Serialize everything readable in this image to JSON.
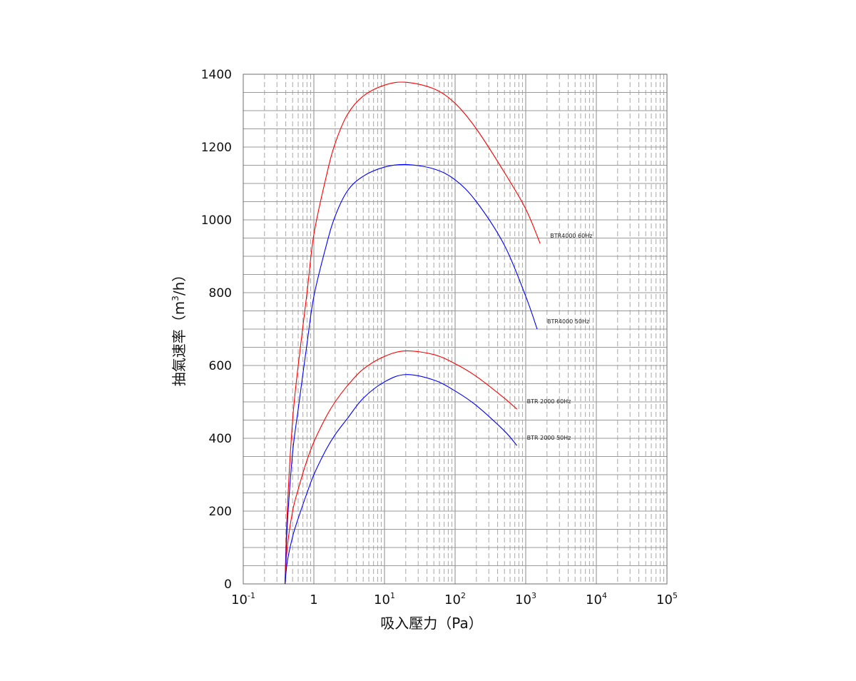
{
  "chart_data": {
    "type": "line",
    "title": "",
    "xlabel": "吸入壓力（Pa）",
    "ylabel_main": "抽氣速率（m",
    "ylabel_sup": "3",
    "ylabel_tail": "/h）",
    "x_scale": "log",
    "xlim": [
      0.1,
      100000
    ],
    "ylim": [
      0,
      1400
    ],
    "grid": true,
    "x_tick_labels": [
      {
        "base": "10",
        "exp": "-1"
      },
      {
        "base": "1",
        "exp": ""
      },
      {
        "base": "10",
        "exp": "1"
      },
      {
        "base": "10",
        "exp": "2"
      },
      {
        "base": "10",
        "exp": "3"
      },
      {
        "base": "10",
        "exp": "4"
      },
      {
        "base": "10",
        "exp": "5"
      }
    ],
    "y_ticks": [
      0,
      200,
      400,
      600,
      800,
      1000,
      1200,
      1400
    ],
    "series": [
      {
        "name": "BTR4000  60Hz",
        "color": "#ff0000",
        "x": [
          0.39,
          0.42,
          0.5,
          0.6,
          0.8,
          1,
          1.5,
          2,
          3,
          5,
          10,
          20,
          50,
          100,
          200,
          500,
          1000,
          1600
        ],
        "y": [
          0,
          200,
          450,
          600,
          800,
          960,
          1120,
          1210,
          1290,
          1340,
          1370,
          1378,
          1360,
          1320,
          1250,
          1130,
          1030,
          935
        ]
      },
      {
        "name": "BTR4000  50Hz",
        "color": "#0000ff",
        "x": [
          0.39,
          0.42,
          0.5,
          0.6,
          0.8,
          1,
          1.5,
          2,
          3,
          5,
          10,
          20,
          50,
          100,
          200,
          500,
          1000,
          1450
        ],
        "y": [
          0,
          160,
          360,
          480,
          660,
          790,
          930,
          1010,
          1080,
          1120,
          1145,
          1152,
          1140,
          1110,
          1050,
          930,
          790,
          700
        ]
      },
      {
        "name": "BTR 2000  60Hz",
        "color": "#ff0000",
        "x": [
          0.39,
          0.42,
          0.5,
          0.6,
          0.8,
          1,
          1.5,
          2,
          3,
          5,
          10,
          20,
          50,
          100,
          200,
          500,
          750
        ],
        "y": [
          0,
          100,
          200,
          260,
          340,
          390,
          460,
          500,
          545,
          590,
          625,
          640,
          630,
          605,
          570,
          510,
          480
        ]
      },
      {
        "name": "BTR 2000  50Hz",
        "color": "#0000ff",
        "x": [
          0.39,
          0.42,
          0.5,
          0.6,
          0.8,
          1,
          1.5,
          2,
          3,
          5,
          10,
          20,
          50,
          100,
          200,
          500,
          750
        ],
        "y": [
          0,
          60,
          130,
          180,
          250,
          300,
          370,
          410,
          455,
          510,
          555,
          575,
          560,
          530,
          490,
          420,
          380
        ]
      }
    ]
  }
}
